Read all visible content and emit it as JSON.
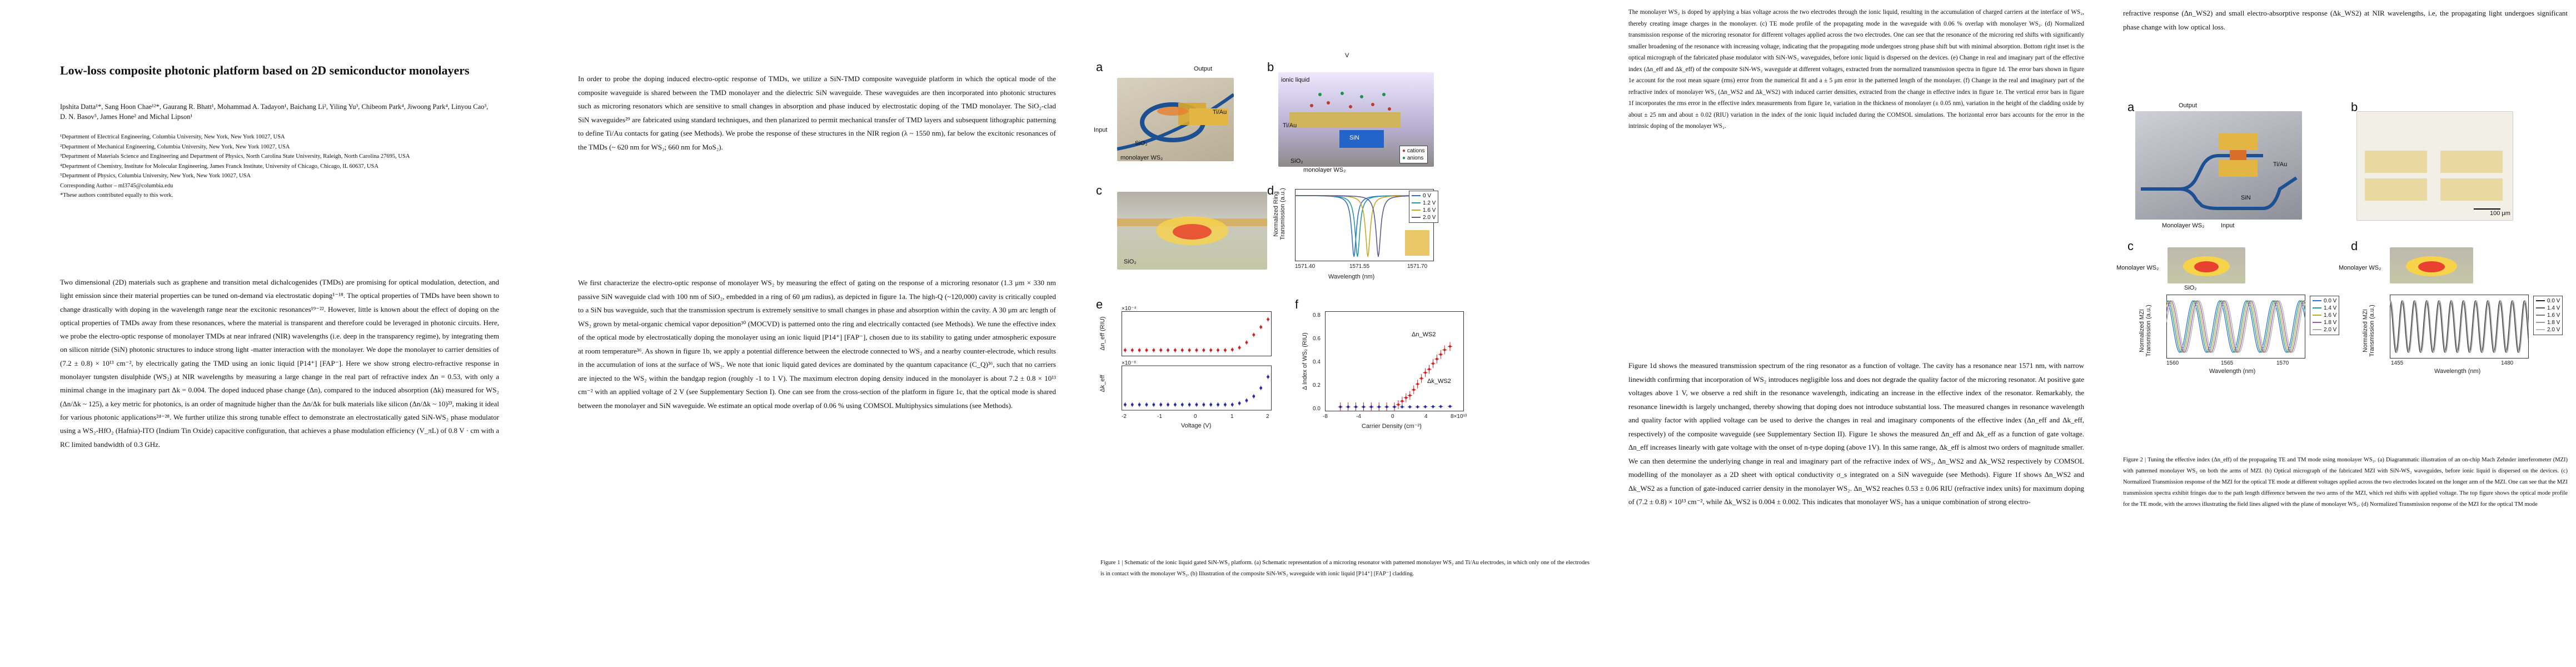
{
  "page1": {
    "title": "Low-loss composite photonic platform based on 2D semiconductor monolayers",
    "authors": "Ipshita Datta¹*, Sang Hoon Chae¹²*, Gaurang R. Bhatt¹, Mohammad A. Tadayon¹, Baichang Li², Yiling Yu³, Chibeom Park⁴, Jiwoong Park⁴, Linyou Cao³, D. N. Basov⁵, James Hone² and Michal Lipson¹",
    "affiliations": [
      "¹Department of Electrical Engineering, Columbia University, New York, New York 10027, USA",
      "²Department of Mechanical Engineering, Columbia University, New York, New York 10027, USA",
      "³Department of Materials Science and Engineering and Department of Physics, North Carolina State University, Raleigh, North Carolina 27695, USA",
      "⁴Department of Chemistry, Institute for Molecular Engineering, James Franck Institute, University of Chicago, Chicago, IL 60637, USA",
      "⁵Department of Physics, Columbia University, New York, New York 10027, USA",
      "Corresponding Author – ml3745@columbia.edu",
      "*These authors contributed equally to this work."
    ],
    "abstract": "Two dimensional (2D) materials such as graphene and transition metal dichalcogenides (TMDs) are promising for optical modulation, detection, and light emission since their material properties can be tuned on-demand via electrostatic doping¹⁻¹⁸. The optical properties of TMDs have been shown to change drastically with doping in the wavelength range near the excitonic resonances¹⁹⁻²². However, little is known about the effect of doping on the optical properties of TMDs away from these resonances, where the material is transparent and therefore could be leveraged in photonic circuits. Here, we probe the electro-optic response of monolayer TMDs at near infrared (NIR) wavelengths (i.e. deep in the transparency regime), by integrating them on silicon nitride (SiN) photonic structures to induce strong light -matter interaction with the monolayer. We dope the monolayer to carrier densities of (7.2 ± 0.8) × 10¹³ cm⁻², by electrically gating the TMD using an ionic liquid [P14⁺] [FAP⁻]. Here we show strong electro-refractive response in monolayer tungsten disulphide (WS₂) at NIR wavelengths by measuring a large change in the real part of refractive index Δn = 0.53, with only a minimal change in the imaginary part Δk = 0.004. The doped induced phase change (Δn), compared to the induced absorption (Δk) measured for WS₂ (Δn/Δk ~ 125), a key metric for photonics, is an order of magnitude higher than the Δn/Δk for bulk materials like silicon (Δn/Δk ~ 10)²³, making it ideal for various photonic applications²⁴⁻²⁸. We further utilize this strong tunable effect to demonstrate an electrostatically gated SiN-WS₂ phase modulator using a WS₂-HfO₂ (Hafnia)-ITO (Indium Tin Oxide) capacitive configuration, that achieves a phase modulation efficiency (V_πL) of 0.8 V · cm with a RC limited bandwidth of 0.3 GHz."
  },
  "page2": {
    "para1": "In order to probe the doping induced electro-optic response of TMDs, we utilize a SiN-TMD composite waveguide platform in which the optical mode of the composite waveguide is shared between the TMD monolayer and the dielectric SiN waveguide. These waveguides are then incorporated into photonic structures such as microring resonators which are sensitive to small changes in absorption and phase induced by electrostatic doping of the TMD monolayer. The SiO₂-clad SiN waveguides²⁹ are fabricated using standard techniques, and then planarized to permit mechanical transfer of TMD layers and subsequent lithographic patterning to define Ti/Au contacts for gating (see Methods). We probe the response of these structures in the NIR region (λ ~ 1550 nm), far below the excitonic resonances of the TMDs (~ 620 nm for WS₂; 660 nm for MoS₂).",
    "para2": "We first characterize the electro-optic response of monolayer WS₂ by measuring the effect of gating on the response of a microring resonator (1.3 μm × 330 nm passive SiN waveguide clad with 100 nm of SiO₂, embedded in a ring of 60 μm radius), as depicted in figure 1a. The high-Q (~120,000) cavity is critically coupled to a SiN bus waveguide, such that the transmission spectrum is extremely sensitive to small changes in phase and absorption within the cavity. A 30 μm arc length of WS₂ grown by metal-organic chemical vapor deposition³⁰ (MOCVD) is patterned onto the ring and electrically contacted (see Methods). We tune the effective index of the optical mode by electrostatically doping the monolayer using an ionic liquid [P14⁺] [FAP⁻], chosen due to its stability to gating under atmospheric exposure at room temperature³⁶. As shown in figure 1b, we apply a potential difference between the electrode connected to WS₂ and a nearby counter-electrode, which results in the accumulation of ions at the surface of WS₂. We note that ionic liquid gated devices are dominated by the quantum capacitance (C_Q)³⁶, such that no carriers are injected to the WS₂ within the bandgap region (roughly -1 to 1 V). The maximum electron doping density induced in the monolayer is about 7.2 ± 0.8 × 10¹³ cm⁻² with an applied voltage of 2 V (see Supplementary Section I). One can see from the cross-section of the platform in figure 1c, that the optical mode is shared between the monolayer and SiN waveguide. We estimate an optical mode overlap of 0.06 % using COMSOL Multiphysics simulations (see Methods)."
  },
  "figure1": {
    "panel_labels": [
      "a",
      "b",
      "c",
      "d",
      "e",
      "f"
    ],
    "a_labels": {
      "output": "Output",
      "input": "Input",
      "tiau": "Ti/Au",
      "sio2": "SiO₂",
      "mono": "monolayer WS₂"
    },
    "b_labels": {
      "v": "V",
      "ionic": "ionic liquid",
      "tiau": "Ti/Au",
      "sin": "SiN",
      "sio2": "SiO₂",
      "mono": "monolayer WS₂",
      "cations": "cations",
      "anions": "anions"
    },
    "c_labels": {
      "sio2": "SiO₂"
    },
    "caption": "Figure 1 | Schematic of the ionic liquid gated SiN-WS₂ platform. (a) Schematic representation of a microring resonator with patterned monolayer WS₂ and Ti/Au electrodes, in which only one of the electrodes is in contact with the monolayer WS₂. (b) Illustration of the composite SiN-WS₂ waveguide with ionic liquid [P14⁺] [FAP⁻] cladding."
  },
  "page4": {
    "methods_text": "The monolayer WS₂ is doped by applying a bias voltage across the two electrodes through the ionic liquid, resulting in the accumulation of charged carriers at the interface of WS₂, thereby creating image charges in the monolayer. (c) TE mode profile of the propagating mode in the waveguide with 0.06 % overlap with monolayer WS₂. (d) Normalized transmission response of the microring resonator for different voltages applied across the two electrodes. One can see that the resonance of the microring red shifts with significantly smaller broadening of the resonance with increasing voltage, indicating that the propagating mode undergoes strong phase shift but with minimal absorption. Bottom right inset is the optical micrograph of the fabricated phase modulator with SiN-WS₂ waveguides, before ionic liquid is dispersed on the devices. (e) Change in real and imaginary part of the effective index (Δn_eff and Δk_eff) of the composite SiN-WS₂ waveguide at different voltages, extracted from the normalized transmission spectra in figure 1d. The error bars shown in figure 1e account for the root mean square (rms) error from the numerical fit and a ± 5 μm error in the patterned length of the monolayer. (f) Change in the real and imaginary part of the refractive index of monolayer WS₂ (Δn_WS2 and Δk_WS2) with induced carrier densities, extracted from the change in effective index in figure 1e. The vertical error bars in figure 1f incorporates the rms error in the effective index measurements from figure 1e, variation in the thickness of monolayer (± 0.05 nm), variation in the height of the cladding oxide by about ± 25 nm and about ± 0.02 (RIU) variation in the index of the ionic liquid included during the COMSOL simulations. The horizontal error bars accounts for the error in the intrinsic doping of the monolayer WS₂.",
    "body_text": "Figure 1d shows the measured transmission spectrum of the ring resonator as a function of voltage. The cavity has a resonance near 1571 nm, with narrow linewidth confirming that incorporation of WS₂ introduces negligible loss and does not degrade the quality factor of the microring resonator. At positive gate voltages above 1 V, we observe a red shift in the resonance wavelength, indicating an increase in the effective index of the resonator. Remarkably, the resonance linewidth is largely unchanged, thereby showing that doping does not introduce substantial loss. The measured changes in resonance wavelength and quality factor with applied voltage can be used to derive the changes in real and imaginary components of the effective index (Δn_eff and Δk_eff, respectively) of the composite waveguide (see Supplementary Section II). Figure 1e shows the measured Δn_eff and Δk_eff as a function of gate voltage. Δn_eff increases linearly with gate voltage with the onset of n-type doping (above 1V). In this same range, Δk_eff is almost two orders of magnitude smaller. We can then determine the underlying change in real and imaginary part of the refractive index of WS₂, Δn_WS2 and Δk_WS2 respectively by COMSOL modelling of the monolayer as a 2D sheet with optical conductivity σ_s integrated on a SiN waveguide (see Methods). Figure 1f shows Δn_WS2 and Δk_WS2 as a function of gate-induced carrier density in the monolayer WS₂. Δn_WS2 reaches 0.53 ± 0.06 RIU (refractive index units) for maximum doping of (7.2 ± 0.8) × 10¹³ cm⁻², while Δk_WS2 is 0.004 ± 0.002. This indicates that monolayer WS₂ has a unique combination of strong electro-"
  },
  "page5": {
    "top_text": "refractive response (Δn_WS2) and small electro-absorptive response (Δk_WS2) at NIR wavelengths, i.e, the propagating light undergoes significant phase change with low optical loss.",
    "figure2_labels": {
      "a": "a",
      "b": "b",
      "c": "c",
      "d": "d",
      "output": "Output",
      "tiau": "Ti/Au",
      "sin": "SiN",
      "mono": "Monolayer WS₂",
      "input": "Input",
      "scale": "100 μm",
      "mono_c": "Monolayer WS₂",
      "mono_d": "Monolayer WS₂",
      "sio2": "SiO₂"
    },
    "caption": "Figure 2 | Tuning the effective index (Δn_eff) of the propagating TE and TM mode using monolayer WS₂. (a) Diagrammatic illustration of an on-chip Mach Zehnder interferometer (MZI) with patterned monolayer WS₂ on both the arms of MZI. (b) Optical micrograph of the fabricated MZI with SiN-WS₂ waveguides, before ionic liquid is dispersed on the devices. (c) Normalized Transmission response of the MZI for the optical TE mode at different voltages applied across the two electrodes located on the longer arm of the MZI. One can see that the MZI transmission spectra exhibit fringes due to the path length difference between the two arms of the MZI, which red shifts with applied voltage. The top figure shows the optical mode profile for the TE mode, with the arrows illustrating the field lines aligned with the plane of monolayer WS₂. (d) Normalized Transmission response of the MZI for the optical TM mode"
  },
  "chart_data": [
    {
      "id": "fig1d",
      "type": "line",
      "xlabel": "Wavelength (nm)",
      "ylabel": "Normalized Ring Transmission (a.u.)",
      "xticks": [
        "1571.40",
        "1571.55",
        "1571.70"
      ],
      "xlim": [
        1571.35,
        1571.75
      ],
      "ylim": [
        0,
        1.05
      ],
      "series": [
        {
          "name": "0 V",
          "center": 1571.52,
          "color": "#2d6fd8"
        },
        {
          "name": "1.2 V",
          "center": 1571.53,
          "color": "#1f9a9a"
        },
        {
          "name": "1.6 V",
          "center": 1571.56,
          "color": "#c9a81f"
        },
        {
          "name": "2.0 V",
          "center": 1571.59,
          "color": "#5b5b8c"
        }
      ]
    },
    {
      "id": "fig1e",
      "type": "scatter",
      "xlabel": "Voltage (V)",
      "ylabel_top": "Δn_eff (RIU)",
      "ylabel_bottom": "Δk_eff",
      "xticks": [
        "-2",
        "-1",
        "0",
        "1",
        "2"
      ],
      "top_scale": "×10⁻⁴",
      "bottom_scale": "×10⁻⁶",
      "x": [
        -2.0,
        -1.8,
        -1.6,
        -1.4,
        -1.2,
        -1.0,
        -0.8,
        -0.6,
        -0.4,
        -0.2,
        0.0,
        0.2,
        0.4,
        0.6,
        0.8,
        1.0,
        1.2,
        1.4,
        1.6,
        1.8,
        2.0
      ],
      "dn": [
        0,
        0,
        0,
        0,
        0,
        0,
        0,
        0,
        0,
        0,
        0,
        0,
        0,
        0,
        0,
        0.02,
        0.1,
        0.3,
        0.6,
        0.9,
        1.2
      ],
      "dk": [
        0,
        0,
        0,
        0,
        0,
        0,
        0,
        0,
        0,
        0,
        0,
        0,
        0,
        0,
        0,
        0,
        0.05,
        0.15,
        0.3,
        0.6,
        1.0
      ]
    },
    {
      "id": "fig1f",
      "type": "scatter",
      "xlabel": "Carrier Density (cm⁻²)",
      "ylabel": "Δ Index of WS₂ (RIU)",
      "xticks": [
        "-8",
        "-4",
        "0",
        "4",
        "8×10¹³"
      ],
      "yticks": [
        "0.0",
        "0.2",
        "0.4",
        "0.6",
        "0.8"
      ],
      "series": [
        {
          "name": "Δn_WS2",
          "color": "#d42020",
          "x": [
            -7,
            -6,
            -5,
            -4,
            -3,
            -2,
            -1,
            0,
            0.5,
            1,
            1.5,
            2,
            2.5,
            3,
            3.5,
            4,
            4.5,
            5,
            5.5,
            6,
            6.5,
            7.2
          ],
          "y": [
            0,
            0,
            0,
            0,
            0,
            0,
            0,
            0,
            0.02,
            0.05,
            0.08,
            0.1,
            0.15,
            0.2,
            0.25,
            0.3,
            0.33,
            0.38,
            0.42,
            0.46,
            0.5,
            0.53
          ]
        },
        {
          "name": "Δk_WS2",
          "color": "#2a2aa8",
          "x": [
            -7,
            -6,
            -5,
            -4,
            -3,
            -2,
            -1,
            0,
            1,
            2,
            3,
            4,
            5,
            6,
            7.2
          ],
          "y": [
            0,
            0,
            0,
            0,
            0,
            0,
            0,
            0,
            0,
            0,
            0,
            0.001,
            0.002,
            0.003,
            0.004
          ]
        }
      ]
    },
    {
      "id": "fig2c",
      "type": "line",
      "xlabel": "Wavelength (nm)",
      "ylabel": "Normalized MZI Transmission (a.u.)",
      "xticks": [
        "1560",
        "1565",
        "1570"
      ],
      "series": [
        {
          "name": "0.0 V",
          "color": "#2d6fd8"
        },
        {
          "name": "1.4 V",
          "color": "#1f9a9a"
        },
        {
          "name": "1.6 V",
          "color": "#c9a81f"
        },
        {
          "name": "1.8 V",
          "color": "#8c5bb8"
        },
        {
          "name": "2.0 V",
          "color": "#b0b0b0"
        }
      ]
    },
    {
      "id": "fig2d",
      "type": "line",
      "xlabel": "Wavelength (nm)",
      "ylabel": "Normalized MZI Transmission (a.u.)",
      "xticks": [
        "1455",
        "1480"
      ],
      "series": [
        {
          "name": "0.0 V",
          "color": "#222"
        },
        {
          "name": "1.4 V",
          "color": "#555"
        },
        {
          "name": "1.6 V",
          "color": "#777"
        },
        {
          "name": "1.8 V",
          "color": "#999"
        },
        {
          "name": "2.0 V",
          "color": "#bbb"
        }
      ]
    }
  ]
}
